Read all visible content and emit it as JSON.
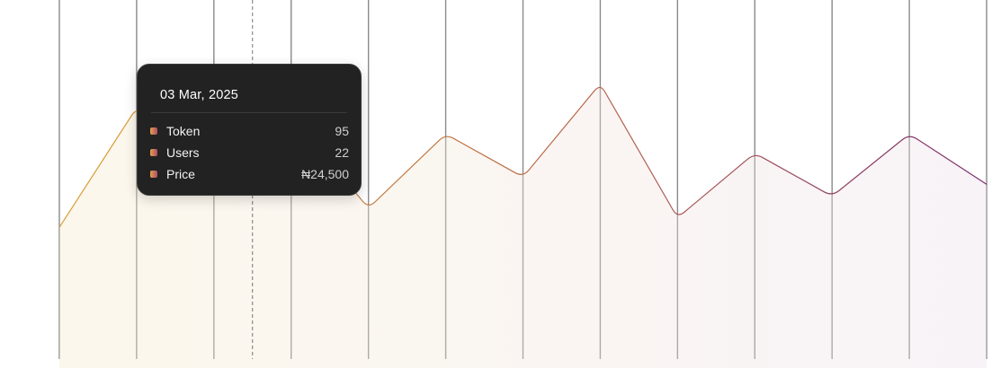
{
  "chart_data": {
    "type": "area",
    "grid": "vertical",
    "ylim": [
      0,
      150
    ],
    "series": [
      {
        "values": [
          55,
          105,
          76,
          102,
          63,
          94,
          76,
          115,
          59,
          86,
          68,
          94,
          73
        ]
      }
    ],
    "colors": {
      "line_start": "#d9a033",
      "line_mid": "#b8684a",
      "line_end": "#7a2f6e",
      "grid": "#8a8a8a",
      "crosshair": "#555555",
      "marker_fill": "#c9684a",
      "marker_stroke": "#3a2a2a"
    },
    "tooltip": {
      "date": "03 Mar, 2025",
      "rows": [
        {
          "label": "Token",
          "value": "95"
        },
        {
          "label": "Users",
          "value": "22"
        },
        {
          "label": "Price",
          "value": "₦24,500"
        }
      ]
    },
    "hover_value": 90
  }
}
